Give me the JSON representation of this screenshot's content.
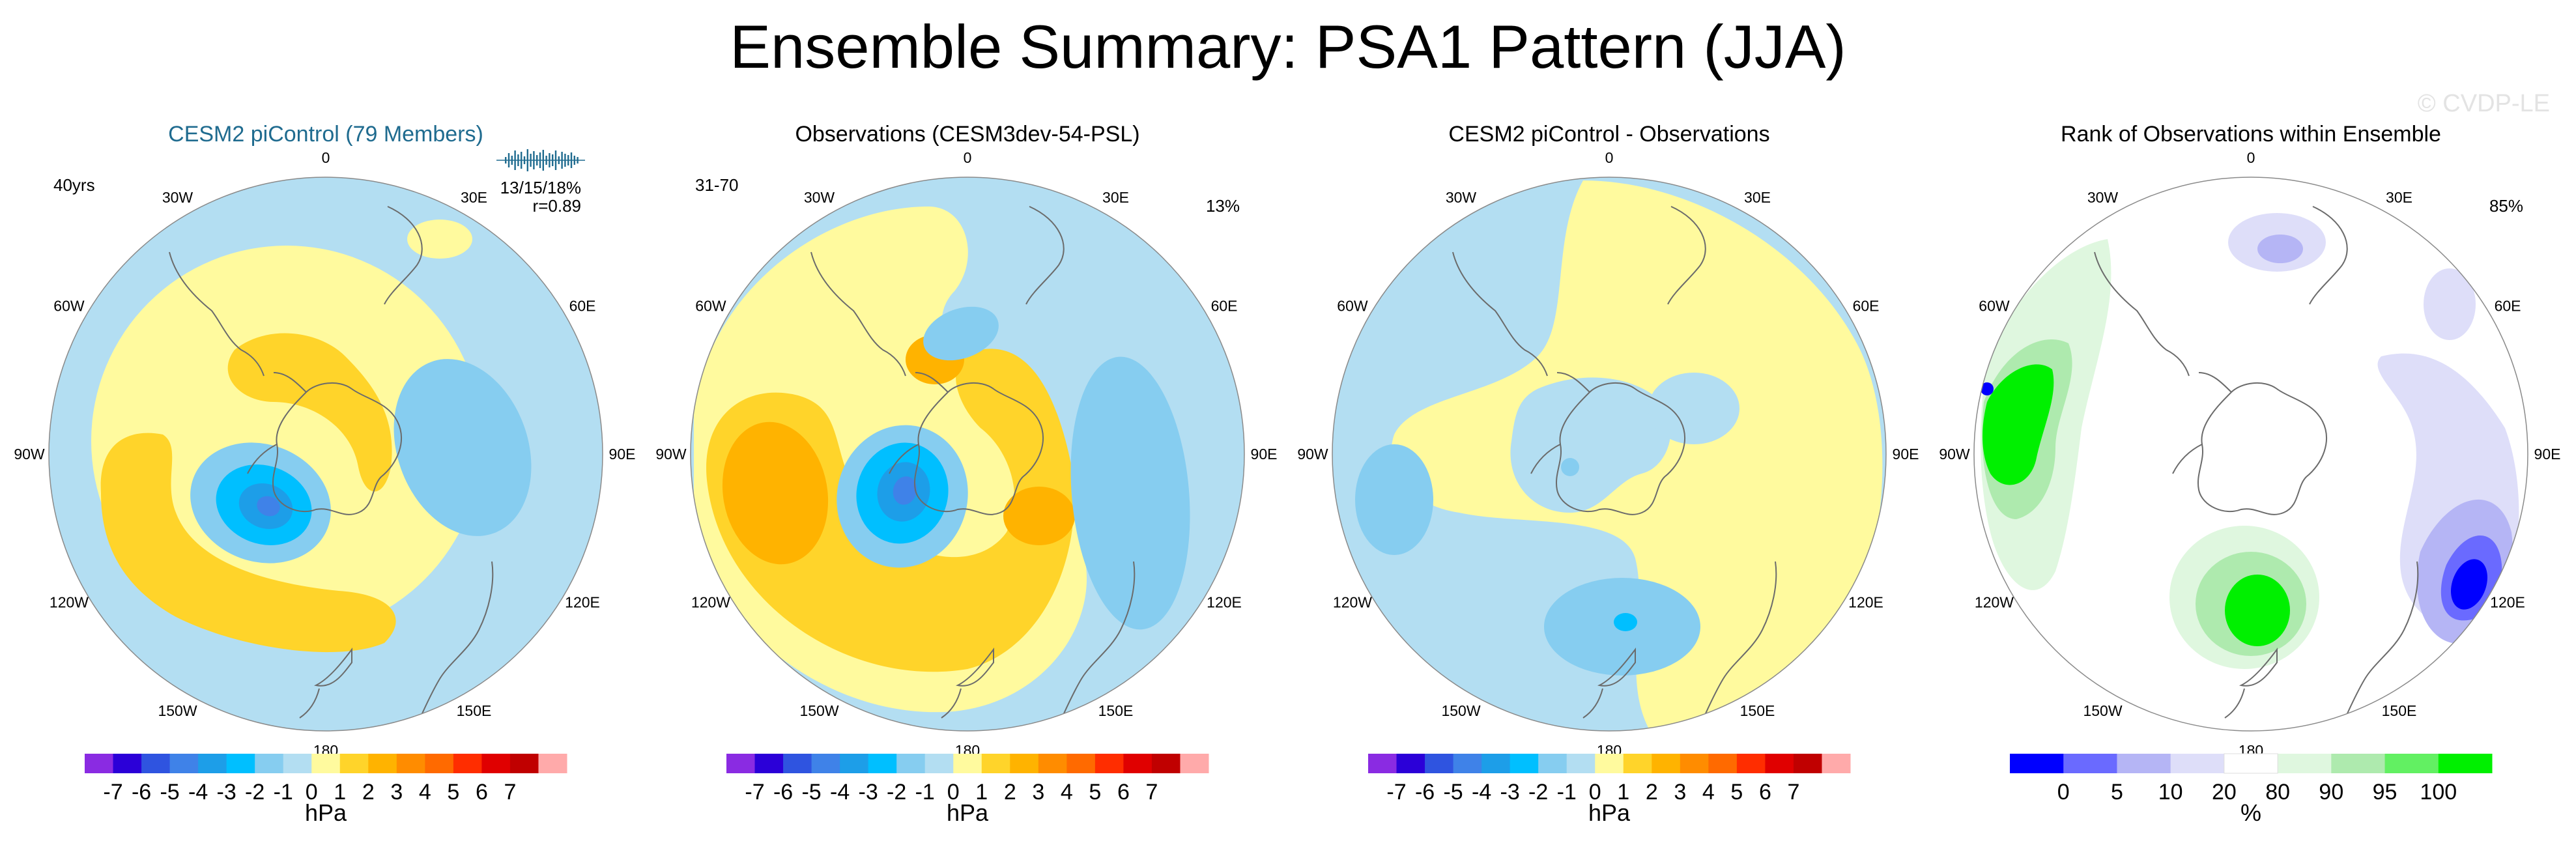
{
  "title": "Ensemble Summary: PSA1 Pattern (JJA)",
  "watermark": "© CVDP-LE",
  "colors": {
    "title_blue": "#1f6b8f",
    "land_line": "#6b6b6b",
    "ocean_base": "#b3def2",
    "spark_bar": "#1f6b8f"
  },
  "longitude_labels": [
    "0",
    "30E",
    "60E",
    "90E",
    "120E",
    "150E",
    "180",
    "150W",
    "120W",
    "90W",
    "60W",
    "30W"
  ],
  "panels": [
    {
      "title": "CESM2 piControl (79 Members)",
      "title_color": "#1f6b8f",
      "corner_left": "40yrs",
      "corner_right": "",
      "stat_line1": "13/15/18%",
      "stat_line2": "r=0.89",
      "has_sparkline": true,
      "colorbar": "hpa"
    },
    {
      "title": "Observations (CESM3dev-54-PSL)",
      "title_color": "#000000",
      "corner_left": "31-70",
      "corner_right": "13%",
      "stat_line1": "",
      "stat_line2": "",
      "has_sparkline": false,
      "colorbar": "hpa"
    },
    {
      "title": "CESM2 piControl - Observations",
      "title_color": "#000000",
      "corner_left": "",
      "corner_right": "",
      "stat_line1": "",
      "stat_line2": "",
      "has_sparkline": false,
      "colorbar": "hpa"
    },
    {
      "title": "Rank of Observations within Ensemble",
      "title_color": "#000000",
      "corner_left": "",
      "corner_right": "85%",
      "stat_line1": "",
      "stat_line2": "",
      "has_sparkline": false,
      "colorbar": "rank"
    }
  ],
  "colorbars": {
    "hpa": {
      "unit": "hPa",
      "colors": [
        "#8a2be2",
        "#2b00d8",
        "#2f54e0",
        "#3f82e8",
        "#1d9ee8",
        "#00bfff",
        "#86cdf0",
        "#b3def2",
        "#fffa9e",
        "#ffd42a",
        "#ffb300",
        "#ff8c00",
        "#ff6a00",
        "#ff2d00",
        "#e00000",
        "#c00000",
        "#ffaaaa"
      ],
      "ticks": [
        "-7",
        "-6",
        "-5",
        "-4",
        "-3",
        "-2",
        "-1",
        "0",
        "1",
        "2",
        "3",
        "4",
        "5",
        "6",
        "7"
      ]
    },
    "rank": {
      "unit": "%",
      "colors": [
        "#0000ff",
        "#6a6aff",
        "#b5b5f5",
        "#dedef9",
        "#ffffff",
        "#dff7df",
        "#aeeaae",
        "#62f062",
        "#00f000"
      ],
      "ticks": [
        "0",
        "5",
        "10",
        "20",
        "80",
        "90",
        "95",
        "100"
      ]
    }
  },
  "chart_data": [
    {
      "type": "heatmap",
      "projection": "south-polar-stereographic",
      "title": "CESM2 piControl (79 Members)",
      "units": "hPa",
      "features": [
        {
          "sign": "negative",
          "value": -4,
          "lon": -125,
          "lat": -62,
          "desc": "low centre over Amundsen-Bellingshausen Sea"
        },
        {
          "sign": "positive",
          "value": 2,
          "lon": -150,
          "lat": -50,
          "desc": "positive arc wrapping the low"
        },
        {
          "sign": "positive",
          "value": 2,
          "lon": -60,
          "lat": -70,
          "desc": "positive over Antarctic Peninsula"
        },
        {
          "sign": "negative",
          "value": -2,
          "lon": 90,
          "lat": -58,
          "desc": "low over eastern Indian Ocean sector"
        }
      ],
      "pattern_correlation": 0.89,
      "explained_variance_pct": [
        13,
        15,
        18
      ],
      "years": 40
    },
    {
      "type": "heatmap",
      "projection": "south-polar-stereographic",
      "title": "Observations (CESM3dev-54-PSL)",
      "units": "hPa",
      "features": [
        {
          "sign": "negative",
          "value": -5,
          "lon": -120,
          "lat": -62,
          "desc": "deep low centre"
        },
        {
          "sign": "positive",
          "value": 3,
          "lon": -140,
          "lat": -45,
          "desc": "strong positive arc"
        },
        {
          "sign": "positive",
          "value": 3,
          "lon": -75,
          "lat": -55,
          "desc": "positive east of low"
        },
        {
          "sign": "negative",
          "value": -2,
          "lon": 25,
          "lat": -50,
          "desc": "low south of Africa"
        },
        {
          "sign": "negative",
          "value": -2,
          "lon": 100,
          "lat": -55,
          "desc": "elongated low, Indian Ocean"
        }
      ],
      "explained_variance_pct": 13,
      "years": "31-70"
    },
    {
      "type": "heatmap",
      "projection": "south-polar-stereographic",
      "title": "CESM2 piControl - Observations",
      "units": "hPa",
      "features": [
        {
          "sign": "negative",
          "value": -2,
          "lon": -100,
          "lat": -50,
          "desc": "negative patch"
        },
        {
          "sign": "negative",
          "value": -2,
          "lon": 155,
          "lat": -58,
          "desc": "negative centre south of Australia"
        },
        {
          "sign": "positive",
          "value": 1,
          "lon": 45,
          "lat": -55,
          "desc": "broad weak positive"
        }
      ]
    },
    {
      "type": "heatmap",
      "projection": "south-polar-stereographic",
      "title": "Rank of Observations within Ensemble",
      "units": "%",
      "features": [
        {
          "rank_range": "95-100",
          "lon": -85,
          "lat": -45,
          "desc": "high rank near South America west coast"
        },
        {
          "rank_range": "95-100",
          "lon": 170,
          "lat": -60,
          "desc": "high rank south of New Zealand"
        },
        {
          "rank_range": "0-5",
          "lon": 110,
          "lat": -45,
          "desc": "low rank off southwest Australia"
        },
        {
          "rank_range": "10-20",
          "lon": 20,
          "lat": -40,
          "desc": "low rank south of Africa"
        }
      ],
      "pct_text": 85
    }
  ]
}
